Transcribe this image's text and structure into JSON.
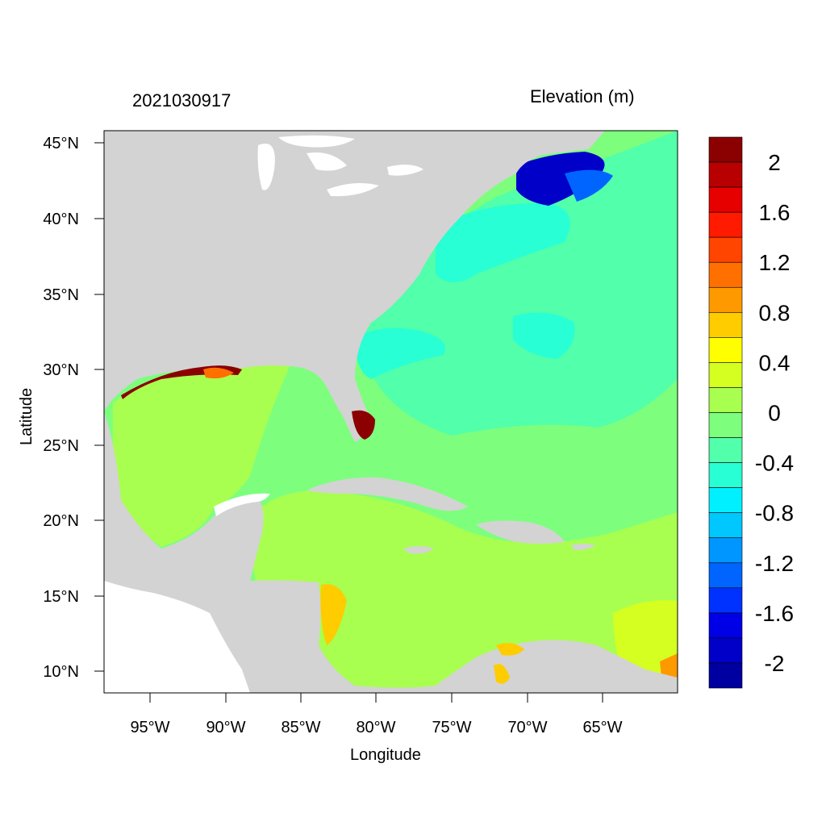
{
  "title_left": "2021030917",
  "title_right": "Elevation (m)",
  "x_axis_label": "Longitude",
  "y_axis_label": "Latitude",
  "x_ticks": [
    "95°W",
    "90°W",
    "85°W",
    "80°W",
    "75°W",
    "70°W",
    "65°W"
  ],
  "y_ticks": [
    "45°N",
    "40°N",
    "35°N",
    "30°N",
    "25°N",
    "20°N",
    "15°N",
    "10°N"
  ],
  "colorbar": {
    "labels": [
      "2",
      "1.6",
      "1.2",
      "0.8",
      "0.4",
      "0",
      "-0.4",
      "-0.8",
      "-1.2",
      "-1.6",
      "-2"
    ],
    "colors": [
      "#8b0000",
      "#b80000",
      "#e60000",
      "#ff1a00",
      "#ff4500",
      "#ff7000",
      "#ff9900",
      "#ffcc00",
      "#ffff00",
      "#d4ff20",
      "#a8ff50",
      "#7dff7d",
      "#52ffaa",
      "#28ffd4",
      "#00f0ff",
      "#00c8ff",
      "#0096ff",
      "#0064ff",
      "#0032ff",
      "#0000e6",
      "#0000c8",
      "#0000a0"
    ]
  },
  "map_colors": {
    "land": "#d3d3d3",
    "water_white": "#ffffff",
    "near_zero": "#a8ff50",
    "slight_negative": "#7dff7d",
    "negative": "#52ffaa",
    "more_negative": "#28ffd4",
    "strong_negative": "#0000c8",
    "positive_high": "#8b0000",
    "positive_mid": "#ffcc00"
  }
}
